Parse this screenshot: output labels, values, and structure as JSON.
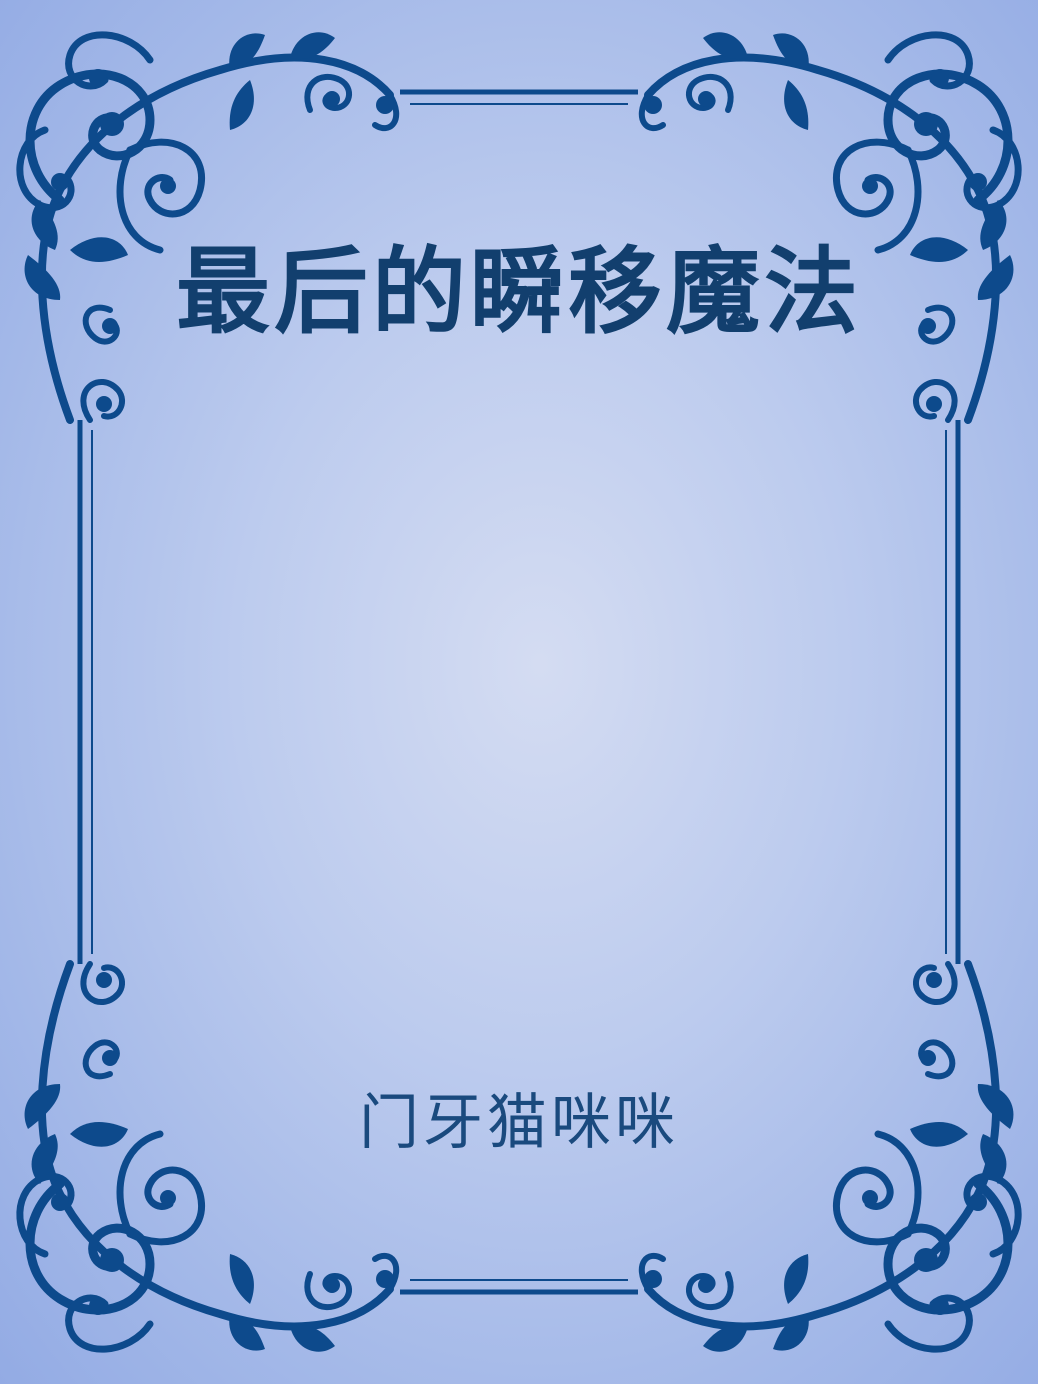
{
  "book": {
    "title": "最后的瞬移魔法",
    "author": "门牙猫咪咪"
  },
  "style": {
    "ornament_color": "#0d4a8c",
    "title_color": "#123f6e",
    "background_center": "#d4dcf2",
    "background_edge": "#93abe4"
  },
  "icons": {
    "frame": "ornamental-scroll-frame-icon"
  }
}
